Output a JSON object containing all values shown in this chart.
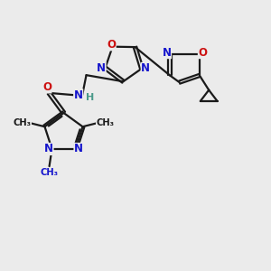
{
  "bg_color": "#ebebeb",
  "bond_color": "#1a1a1a",
  "N_color": "#1515cc",
  "O_color": "#cc1010",
  "H_color": "#4a9a8a",
  "C_color": "#1a1a1a",
  "line_width": 1.6,
  "font_size_atom": 8.5,
  "font_size_methyl": 7.2,
  "fig_w": 3.0,
  "fig_h": 3.0,
  "dpi": 100,
  "xlim": [
    0,
    10
  ],
  "ylim": [
    0,
    10
  ]
}
